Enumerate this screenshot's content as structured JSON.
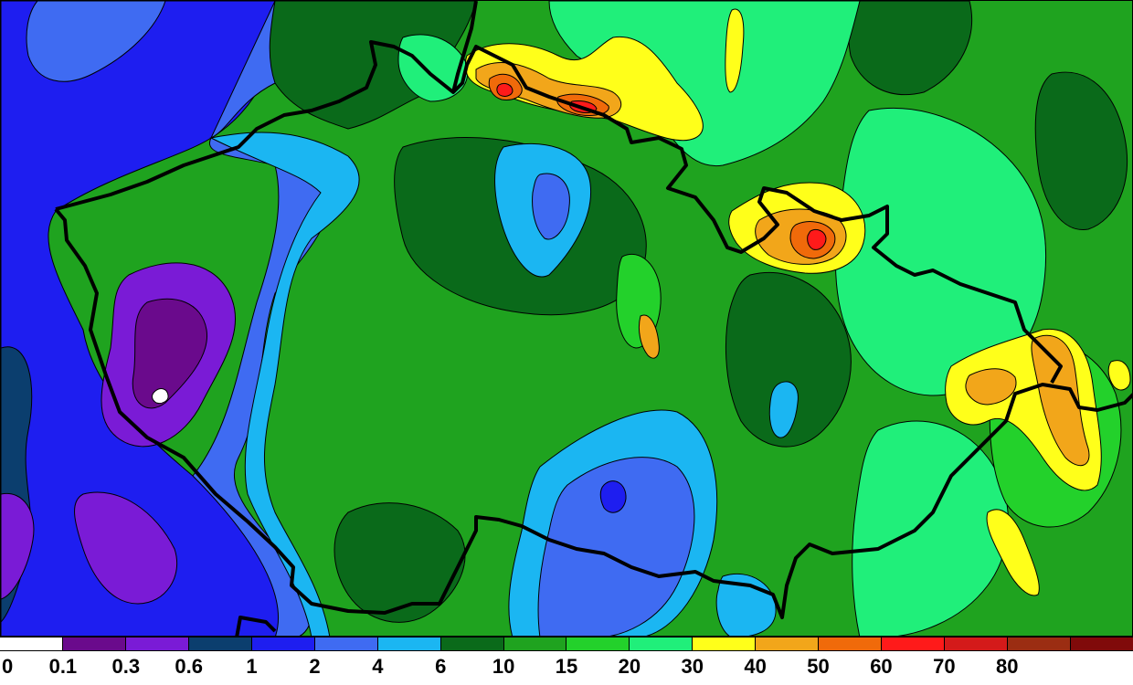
{
  "legend": {
    "colors": [
      "#ffffff",
      "#6a0a8c",
      "#7a1bd6",
      "#0b3e6e",
      "#1e1ef0",
      "#3f6bf2",
      "#1bb6f2",
      "#0a6a1a",
      "#1fa31f",
      "#23d12b",
      "#20ef7a",
      "#ffff1a",
      "#f2a61a",
      "#f06a0a",
      "#ff1a1a",
      "#d41a1a",
      "#9b2d12",
      "#800a0a"
    ],
    "labels": [
      "0",
      "0.1",
      "0.3",
      "0.6",
      "1",
      "2",
      "4",
      "6",
      "10",
      "15",
      "20",
      "30",
      "40",
      "50",
      "60",
      "70",
      "80"
    ]
  },
  "map": {
    "background_color": "#1fa31f",
    "border_color": "#000000",
    "regions": [
      {
        "level": "0.6",
        "color": "#0b3e6e"
      },
      {
        "level": "1",
        "color": "#1e1ef0"
      },
      {
        "level": "0.1",
        "color": "#6a0a8c"
      },
      {
        "level": "0.3",
        "color": "#7a1bd6"
      },
      {
        "level": "2",
        "color": "#3f6bf2"
      },
      {
        "level": "4",
        "color": "#1bb6f2"
      },
      {
        "level": "6",
        "color": "#0a6a1a"
      },
      {
        "level": "15",
        "color": "#23d12b"
      },
      {
        "level": "20",
        "color": "#20ef7a"
      },
      {
        "level": "30",
        "color": "#ffff1a"
      },
      {
        "level": "40",
        "color": "#f2a61a"
      },
      {
        "level": "50",
        "color": "#f06a0a"
      },
      {
        "level": "60",
        "color": "#ff1a1a"
      },
      {
        "level": "0",
        "color": "#ffffff"
      }
    ]
  }
}
